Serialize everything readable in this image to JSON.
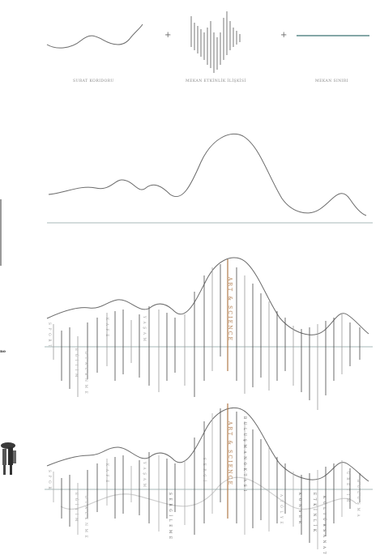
{
  "legend": {
    "item1_label": "SURAT KORIDORU",
    "item2_label": "MEKAN ETKİNLİK İLİŞKİSİ",
    "item3_label": "MEKAN SINIRI",
    "plus": "+",
    "line_color": "#5c8a8a"
  },
  "side": {
    "crop_text": "no"
  },
  "diagram3": {
    "accent_label": "ART & SCIENCE",
    "small_labels": [
      "S P O R T",
      "E Ğ İ T İ M",
      "D İ N L E N M E",
      "K A F E",
      "Y A Ş A M"
    ]
  },
  "diagram4": {
    "accent_label": "ART & SCIENCE",
    "labels": [
      "S P O R",
      "E Ğ İ T İ M",
      "D İ N L E N M E",
      "K A F E",
      "Y A Ş A M",
      "S E R G İ",
      "A T Ö L Y E",
      "Ü R E T İ M",
      "B U L U Ş M A"
    ],
    "dark_labels": [
      "S E R G İ L E M E",
      "B U L U Ş M A   N O K T A S I",
      "K O N S E R",
      "E T K İ N L İ K",
      "K Ü L T Ü R   S A N A T"
    ]
  },
  "colors": {
    "curve": "#6a6a6a",
    "bars": "#4a4a4a",
    "accent": "#b07a4a",
    "ghost": "#cfcfcf",
    "axis": "#8aa0a0"
  }
}
